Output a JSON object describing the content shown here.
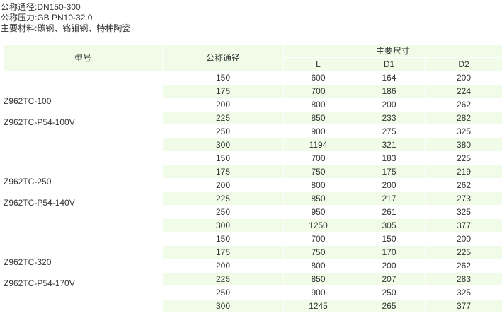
{
  "info": {
    "line1": "公称通径:DN150-300",
    "line2": "公称压力:GB PN10-32.0",
    "line3": "主要材料:碳钢、铬钼钢、特种陶瓷"
  },
  "colors": {
    "stripe": "#f0fce8",
    "text": "#333333"
  },
  "table": {
    "headers": {
      "model": "型号",
      "dn": "公称通径",
      "main": "主要尺寸",
      "L": "L",
      "D1": "D1",
      "D2": "D2"
    },
    "groups": [
      {
        "models": [
          "Z962TC-100",
          "Z962TC-P54-100V"
        ],
        "rows": [
          [
            "150",
            "600",
            "164",
            "200"
          ],
          [
            "175",
            "700",
            "186",
            "224"
          ],
          [
            "200",
            "800",
            "200",
            "262"
          ],
          [
            "225",
            "850",
            "233",
            "282"
          ],
          [
            "250",
            "900",
            "275",
            "325"
          ],
          [
            "300",
            "1194",
            "321",
            "380"
          ]
        ]
      },
      {
        "models": [
          "Z962TC-250",
          "Z962TC-P54-140V"
        ],
        "rows": [
          [
            "150",
            "700",
            "183",
            "225"
          ],
          [
            "175",
            "750",
            "175",
            "219"
          ],
          [
            "200",
            "800",
            "200",
            "262"
          ],
          [
            "225",
            "850",
            "217",
            "273"
          ],
          [
            "250",
            "950",
            "261",
            "325"
          ],
          [
            "300",
            "1250",
            "305",
            "377"
          ]
        ]
      },
      {
        "models": [
          "Z962TC-320",
          "Z962TC-P54-170V"
        ],
        "rows": [
          [
            "150",
            "700",
            "150",
            "200"
          ],
          [
            "175",
            "750",
            "170",
            "225"
          ],
          [
            "200",
            "800",
            "200",
            "262"
          ],
          [
            "225",
            "850",
            "207",
            "283"
          ],
          [
            "250",
            "900",
            "250",
            "325"
          ],
          [
            "300",
            "1245",
            "265",
            "377"
          ]
        ]
      }
    ]
  }
}
